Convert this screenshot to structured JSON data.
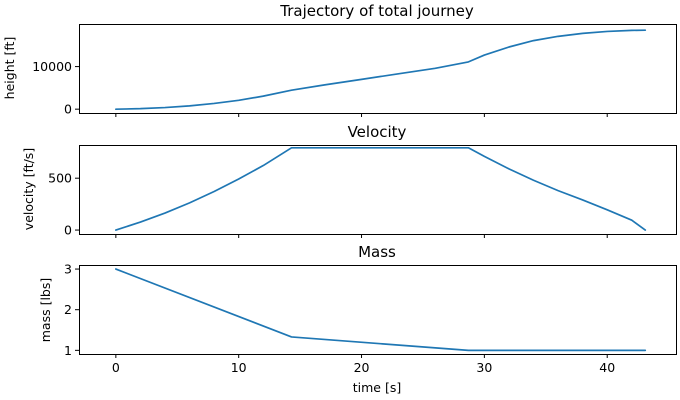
{
  "chart_data": [
    {
      "type": "line",
      "title": "Trajectory of total journey",
      "xlabel": "",
      "ylabel": "height [ft]",
      "xlim": [
        -3,
        45.6
      ],
      "ylim": [
        -900,
        20000
      ],
      "x_ticks": [
        0,
        10,
        20,
        30,
        40
      ],
      "x_tick_labels_visible": false,
      "y_ticks": [
        0,
        10000
      ],
      "y_tick_labels": [
        "0",
        "10000"
      ],
      "grid": false,
      "series": [
        {
          "color": "#1f77b4",
          "x": [
            0,
            2,
            4,
            6,
            8,
            10,
            12,
            14.3,
            17,
            20,
            23,
            26,
            28.7,
            30,
            32,
            34,
            36,
            38,
            40,
            42,
            43.1
          ],
          "y": [
            0,
            120,
            380,
            780,
            1350,
            2080,
            3060,
            4450,
            5700,
            7000,
            8300,
            9600,
            11100,
            12700,
            14600,
            16100,
            17100,
            17800,
            18250,
            18500,
            18550
          ]
        }
      ]
    },
    {
      "type": "line",
      "title": "Velocity",
      "xlabel": "",
      "ylabel": "velocity [ft/s]",
      "xlim": [
        -3,
        45.6
      ],
      "ylim": [
        -38,
        820
      ],
      "x_ticks": [
        0,
        10,
        20,
        30,
        40
      ],
      "x_tick_labels_visible": false,
      "y_ticks": [
        0,
        500
      ],
      "y_tick_labels": [
        "0",
        "500"
      ],
      "grid": false,
      "series": [
        {
          "color": "#1f77b4",
          "x": [
            0,
            2,
            4,
            6,
            8,
            10,
            12,
            14.3,
            28.7,
            30,
            32,
            34,
            36,
            38,
            40,
            42,
            43.1
          ],
          "y": [
            0,
            77,
            164,
            262,
            372,
            492,
            622,
            793,
            793,
            710,
            590,
            480,
            380,
            290,
            195,
            95,
            0
          ]
        }
      ]
    },
    {
      "type": "line",
      "title": "Mass",
      "xlabel": "time [s]",
      "ylabel": "mass [lbs]",
      "xlim": [
        -3,
        45.6
      ],
      "ylim": [
        0.91,
        3.1
      ],
      "x_ticks": [
        0,
        10,
        20,
        30,
        40
      ],
      "x_tick_labels": [
        "0",
        "10",
        "20",
        "30",
        "40"
      ],
      "x_tick_labels_visible": true,
      "y_ticks": [
        1,
        2,
        3
      ],
      "y_tick_labels": [
        "1",
        "2",
        "3"
      ],
      "grid": false,
      "series": [
        {
          "color": "#1f77b4",
          "x": [
            0,
            14.3,
            28.7,
            43.1
          ],
          "y": [
            3,
            1.33,
            1,
            1
          ]
        }
      ]
    }
  ]
}
